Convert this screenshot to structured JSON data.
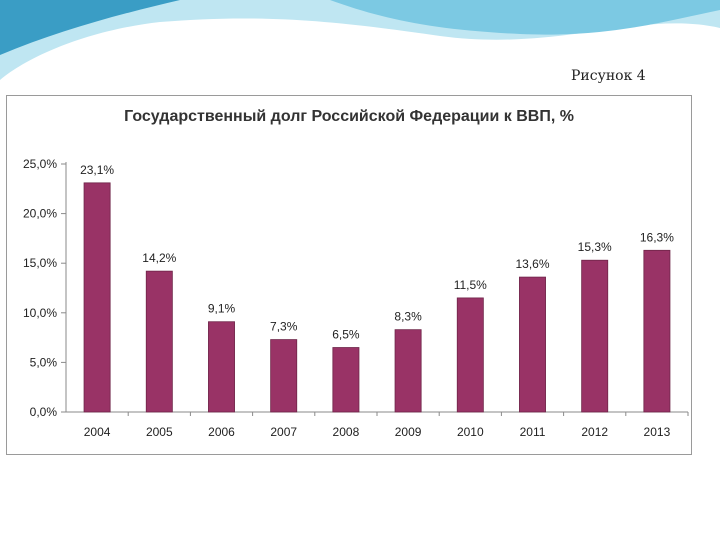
{
  "page": {
    "figure_label": "Рисунок 4",
    "header_colors": {
      "light": "#bfe6f2",
      "mid": "#7cc9e3",
      "dark": "#3a9dc5"
    }
  },
  "chart_data": {
    "type": "bar",
    "title": "Государственный долг Российской Федерации к ВВП, %",
    "categories": [
      "2004",
      "2005",
      "2006",
      "2007",
      "2008",
      "2009",
      "2010",
      "2011",
      "2012",
      "2013"
    ],
    "values": [
      23.1,
      14.2,
      9.1,
      7.3,
      6.5,
      8.3,
      11.5,
      13.6,
      15.3,
      16.3
    ],
    "data_labels": [
      "23,1%",
      "14,2%",
      "9,1%",
      "7,3%",
      "6,5%",
      "8,3%",
      "11,5%",
      "13,6%",
      "15,3%",
      "16,3%"
    ],
    "y_ticks": [
      0,
      5,
      10,
      15,
      20,
      25
    ],
    "y_tick_labels": [
      "0,0%",
      "5,0%",
      "10,0%",
      "15,0%",
      "20,0%",
      "25,0%"
    ],
    "ylim": [
      0,
      25
    ],
    "xlabel": "",
    "ylabel": "",
    "grid": false,
    "legend": "none",
    "bar_color": "#993366"
  }
}
